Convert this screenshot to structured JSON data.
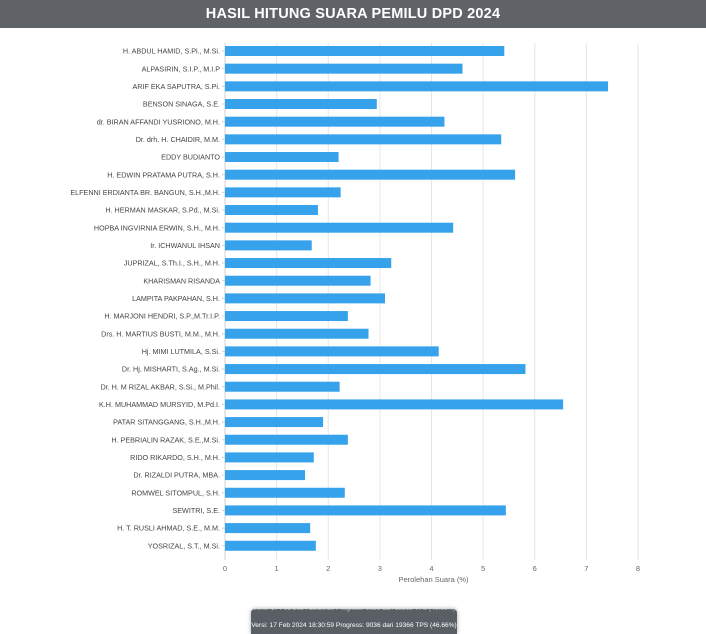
{
  "header": {
    "title": "HASIL HITUNG SUARA PEMILU DPD 2024"
  },
  "footer": {
    "status": "Versi: 17 Feb 2024 18:30:59 Progress: 9036 dari 19366 TPS (46.66%)"
  },
  "colors": {
    "bar": "#36a2eb",
    "grid": "#e6e6e6",
    "header_bg": "#5f6368",
    "text": "#666666"
  },
  "chart_data": {
    "type": "bar",
    "orientation": "horizontal",
    "title": "",
    "xlabel": "Perolehan Suara (%)",
    "ylabel": "",
    "xlim": [
      0,
      8
    ],
    "xticks": [
      0,
      1,
      2,
      3,
      4,
      5,
      6,
      7,
      8
    ],
    "grid": true,
    "categories": [
      "H. ABDUL HAMID, S.Pi., M.Si.",
      "ALPASIRIN, S.I.P., M.I.P",
      "ARIF EKA SAPUTRA, S.Pi.",
      "BENSON SINAGA, S.E.",
      "dr. BIRAN AFFANDI YUSRIONO, M.H.",
      "Dr. drh. H. CHAIDIR, M.M.",
      "EDDY BUDIANTO",
      "H. EDWIN PRATAMA PUTRA, S.H.",
      "ELFENNI ERDIANTA BR. BANGUN, S.H.,M.H.",
      "H. HERMAN MASKAR, S.Pd., M.Si.",
      "HOPBA INGVIRNIA ERWIN, S.H., M.H.",
      "Ir. ICHWANUL IHSAN",
      "JUPRIZAL, S.Th.I., S.H., M.H.",
      "KHARISMAN RISANDA",
      "LAMPITA PAKPAHAN, S.H.",
      "H. MARJONI HENDRI, S.P.,M.Tr.I.P.",
      "Drs. H. MARTIUS BUSTI, M.M., M.H.",
      "Hj. MIMI LUTMILA, S.Si.",
      "Dr. Hj. MISHARTI, S.Ag., M.Si.",
      "Dr. H. M RIZAL AKBAR, S.Si., M.Phil.",
      "K.H. MUHAMMAD MURSYID, M.Pd.I.",
      "PATAR SITANGGANG, S.H.,M.H.",
      "H. PEBRIALIN RAZAK, S.E.,M.Si.",
      "RIDO RIKARDO, S.H., M.H.",
      "Dr. RIZALDI PUTRA, MBA.",
      "ROMWEL SITOMPUL, S.H.",
      "SEWITRI, S.E.",
      "H. T. RUSLI AHMAD, S.E., M.M.",
      "YOSRIZAL, S.T., M.Si."
    ],
    "values": [
      5.41,
      4.6,
      7.42,
      2.94,
      4.25,
      5.35,
      2.2,
      5.62,
      2.24,
      1.8,
      4.42,
      1.68,
      3.22,
      2.82,
      3.1,
      2.38,
      2.78,
      4.14,
      5.82,
      2.22,
      6.55,
      1.9,
      2.38,
      1.72,
      1.55,
      2.32,
      5.44,
      1.65,
      1.76
    ]
  }
}
